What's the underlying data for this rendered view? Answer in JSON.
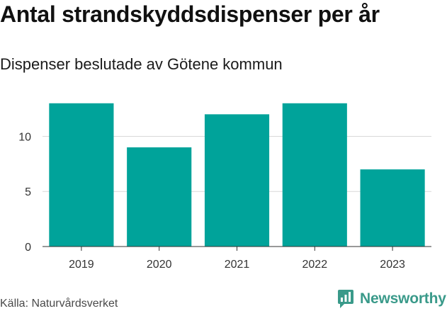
{
  "header": {
    "title": "Antal strandskyddsdispenser per år",
    "subtitle": "Dispenser beslutade av Götene kommun"
  },
  "footer": {
    "source": "Källa: Naturvårdsverket",
    "brand": "Newsworthy",
    "brand_icon": "newsworthy-logo-icon"
  },
  "colors": {
    "bar": "#00a39a",
    "grid": "#d9d9d9",
    "axis": "#333333",
    "brand": "#3a9a8a"
  },
  "chart_data": {
    "type": "bar",
    "title": "Antal strandskyddsdispenser per år",
    "subtitle": "Dispenser beslutade av Götene kommun",
    "categories": [
      "2019",
      "2020",
      "2021",
      "2022",
      "2023"
    ],
    "values": [
      13,
      9,
      12,
      13,
      7
    ],
    "xlabel": "",
    "ylabel": "",
    "ylim": [
      0,
      13.5
    ],
    "yticks": [
      0,
      5,
      10
    ],
    "grid": true,
    "legend": "none"
  }
}
